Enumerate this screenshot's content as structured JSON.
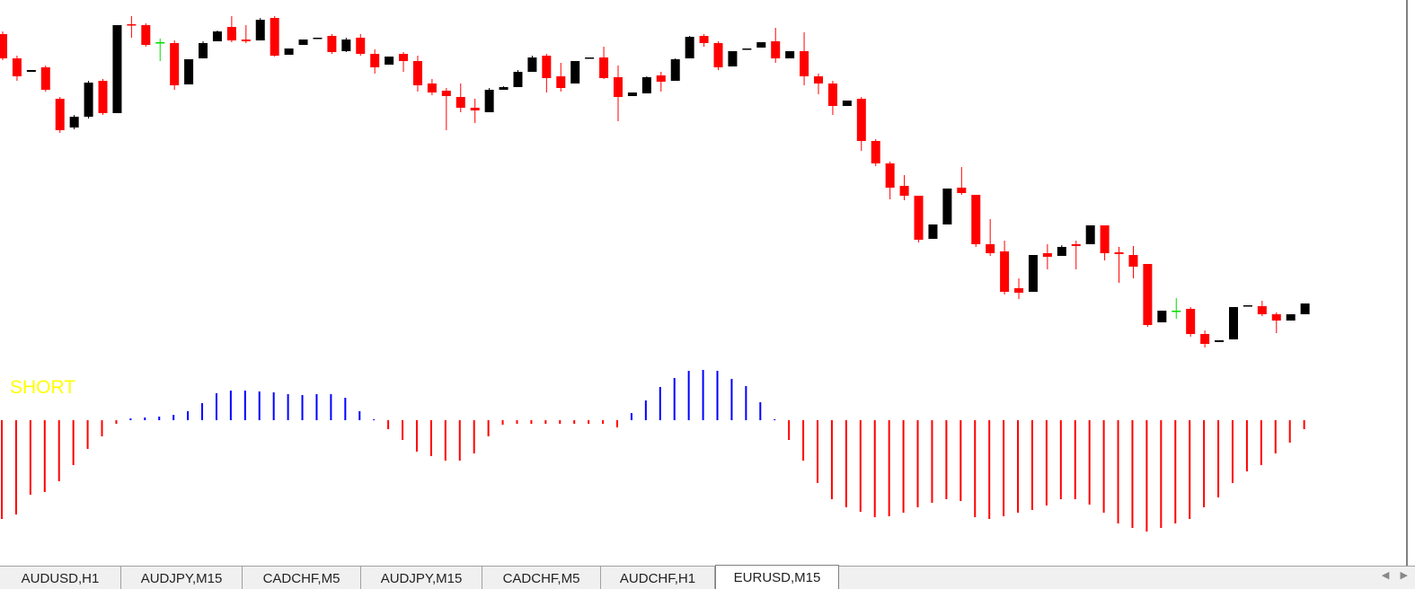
{
  "chart_data": [
    {
      "type": "candlestick",
      "ylim": [
        0,
        400
      ],
      "up_color": "#000000",
      "down_color": "#ff0000",
      "doji_color": "#00dd00",
      "open": [
        362,
        335,
        320,
        325,
        290,
        258,
        270,
        310,
        274,
        373,
        372,
        353,
        352,
        306,
        335,
        354,
        370,
        356,
        355,
        380,
        339,
        350,
        357,
        360,
        343,
        358,
        340,
        328,
        340,
        332,
        307,
        299,
        292,
        280,
        275,
        300,
        303,
        320,
        338,
        315,
        307,
        335,
        336,
        314,
        293,
        296,
        316,
        310,
        335,
        360,
        352,
        326,
        345,
        347,
        354,
        335,
        343,
        315,
        307,
        282,
        290,
        243,
        218,
        193,
        182,
        134,
        150,
        191,
        183,
        128,
        120,
        79,
        75,
        118,
        115,
        128,
        128,
        149,
        119,
        116,
        106,
        41,
        54,
        56,
        28,
        19,
        22,
        59,
        59,
        50,
        43,
        50
      ],
      "high": [
        365,
        338,
        322,
        327,
        292,
        272,
        310,
        312,
        372,
        382,
        374,
        357,
        355,
        334,
        354,
        366,
        382,
        372,
        380,
        382,
        346,
        356,
        358,
        362,
        358,
        362,
        345,
        337,
        342,
        338,
        312,
        302,
        307,
        290,
        302,
        304,
        322,
        338,
        340,
        330,
        332,
        336,
        348,
        327,
        297,
        315,
        320,
        335,
        360,
        362,
        354,
        343,
        346,
        353,
        369,
        343,
        364,
        318,
        310,
        288,
        292,
        245,
        220,
        205,
        182,
        150,
        190,
        214,
        183,
        156,
        132,
        90,
        116,
        128,
        127,
        132,
        149,
        149,
        125,
        126,
        106,
        54,
        68,
        58,
        32,
        21,
        58,
        60,
        65,
        52,
        50,
        62
      ],
      "low": [
        333,
        310,
        320,
        298,
        252,
        256,
        268,
        272,
        274,
        358,
        348,
        332,
        300,
        306,
        335,
        354,
        353,
        352,
        355,
        337,
        339,
        350,
        357,
        340,
        342,
        338,
        318,
        328,
        320,
        298,
        294,
        255,
        275,
        263,
        275,
        300,
        303,
        320,
        297,
        298,
        307,
        335,
        312,
        265,
        293,
        296,
        298,
        310,
        335,
        348,
        322,
        326,
        345,
        347,
        330,
        335,
        305,
        295,
        272,
        282,
        232,
        215,
        178,
        177,
        130,
        134,
        150,
        183,
        125,
        115,
        72,
        67,
        75,
        100,
        115,
        100,
        128,
        110,
        85,
        90,
        36,
        41,
        45,
        25,
        13,
        19,
        22,
        59,
        48,
        29,
        43,
        50
      ],
      "close": [
        335,
        315,
        322,
        300,
        255,
        270,
        308,
        274,
        372,
        372,
        350,
        353,
        305,
        334,
        352,
        365,
        355,
        354,
        378,
        338,
        346,
        356,
        358,
        342,
        356,
        340,
        325,
        337,
        332,
        305,
        297,
        293,
        280,
        277,
        300,
        303,
        320,
        336,
        313,
        302,
        332,
        336,
        313,
        292,
        297,
        314,
        309,
        334,
        359,
        352,
        325,
        343,
        346,
        353,
        335,
        343,
        315,
        307,
        282,
        288,
        243,
        218,
        191,
        182,
        133,
        150,
        190,
        185,
        128,
        118,
        75,
        74,
        116,
        114,
        125,
        126,
        149,
        118,
        117,
        103,
        38,
        54,
        54,
        28,
        17,
        21,
        58,
        60,
        50,
        43,
        50,
        62
      ]
    },
    {
      "type": "bar",
      "label": "SHORT",
      "label_color": "#ffff00",
      "up_color": "#0000ff",
      "down_color": "#ff0000",
      "ylim": [
        -130,
        60
      ],
      "values": [
        -110,
        -105,
        -83,
        -80,
        -68,
        -50,
        -32,
        -18,
        -4,
        2,
        3,
        4,
        6,
        10,
        19,
        30,
        33,
        33,
        32,
        31,
        29,
        28,
        29,
        29,
        25,
        10,
        1,
        -10,
        -22,
        -35,
        -40,
        -45,
        -45,
        -37,
        -18,
        -5,
        -4,
        -4,
        -4,
        -4,
        -4,
        -4,
        -4,
        -8,
        8,
        22,
        37,
        47,
        55,
        56,
        55,
        46,
        38,
        20,
        1,
        -22,
        -45,
        -70,
        -88,
        -97,
        -102,
        -108,
        -107,
        -103,
        -97,
        -92,
        -88,
        -90,
        -108,
        -110,
        -107,
        -103,
        -100,
        -95,
        -88,
        -88,
        -94,
        -103,
        -115,
        -120,
        -124,
        -120,
        -115,
        -110,
        -97,
        -86,
        -70,
        -57,
        -50,
        -37,
        -25,
        -10
      ]
    }
  ],
  "tabs": [
    "AUDUSD,H1",
    "AUDJPY,M15",
    "CADCHF,M5",
    "AUDJPY,M15",
    "CADCHF,M5",
    "AUDCHF,H1",
    "EURUSD,M15"
  ],
  "active_tab": 6
}
